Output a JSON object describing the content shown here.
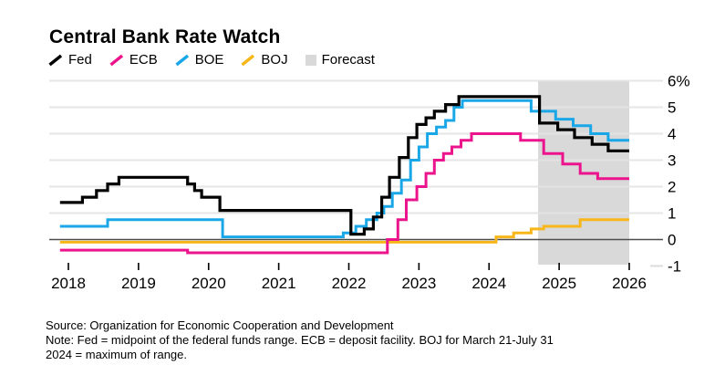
{
  "title": "Central Bank Rate Watch",
  "legend": [
    {
      "label": "Fed",
      "color": "#000000",
      "marker": "line"
    },
    {
      "label": "ECB",
      "color": "#ec148c",
      "marker": "line"
    },
    {
      "label": "BOE",
      "color": "#1aa7e8",
      "marker": "line"
    },
    {
      "label": "BOJ",
      "color": "#f7b71a",
      "marker": "line"
    },
    {
      "label": "Forecast",
      "color": "#d9d9d9",
      "marker": "square"
    }
  ],
  "footer": {
    "source": "Source: Organization for Economic Cooperation and Development",
    "note_lines": [
      "Note: Fed = midpoint of the federal funds range. ECB = deposit facility. BOJ for March 21-July 31",
      "2024 = maximum of range."
    ]
  },
  "chart_data": {
    "type": "line",
    "line_style": "step",
    "title": "Central Bank Rate Watch",
    "unit": "%",
    "xlim": [
      2017.88,
      2026
    ],
    "ylim": [
      -1,
      6
    ],
    "grid": "horizontal",
    "legend_position": "top-left",
    "x_ticks": [
      2018,
      2019,
      2020,
      2021,
      2022,
      2023,
      2024,
      2025,
      2026
    ],
    "y_ticks": [
      {
        "value": 6,
        "label": "6%"
      },
      {
        "value": 5,
        "label": "5"
      },
      {
        "value": 4,
        "label": "4"
      },
      {
        "value": 3,
        "label": "3"
      },
      {
        "value": 2,
        "label": "2"
      },
      {
        "value": 1,
        "label": "1"
      },
      {
        "value": 0,
        "label": "0"
      },
      {
        "value": -1,
        "label": "-1"
      }
    ],
    "forecast_region": {
      "start": 2024.7,
      "end": 2026,
      "color": "#d9d9d9"
    },
    "series": [
      {
        "name": "Fed",
        "color": "#000000",
        "width": 3.2,
        "points": [
          [
            2017.88,
            1.4
          ],
          [
            2018.2,
            1.6
          ],
          [
            2018.4,
            1.85
          ],
          [
            2018.56,
            2.1
          ],
          [
            2018.72,
            2.35
          ],
          [
            2019.7,
            2.1
          ],
          [
            2019.8,
            1.85
          ],
          [
            2019.9,
            1.6
          ],
          [
            2020.16,
            1.1
          ],
          [
            2022.03,
            0.2
          ],
          [
            2022.22,
            0.4
          ],
          [
            2022.35,
            0.85
          ],
          [
            2022.47,
            1.6
          ],
          [
            2022.58,
            2.35
          ],
          [
            2022.72,
            3.1
          ],
          [
            2022.85,
            3.85
          ],
          [
            2022.97,
            4.35
          ],
          [
            2023.1,
            4.6
          ],
          [
            2023.22,
            4.85
          ],
          [
            2023.38,
            5.1
          ],
          [
            2023.57,
            5.4
          ],
          [
            2024.72,
            4.4
          ],
          [
            2024.98,
            4.15
          ],
          [
            2025.22,
            3.85
          ],
          [
            2025.47,
            3.6
          ],
          [
            2025.7,
            3.35
          ]
        ]
      },
      {
        "name": "ECB",
        "color": "#ec148c",
        "width": 3,
        "points": [
          [
            2017.88,
            -0.4
          ],
          [
            2019.7,
            -0.5
          ],
          [
            2022.55,
            0.0
          ],
          [
            2022.7,
            0.75
          ],
          [
            2022.82,
            1.5
          ],
          [
            2022.97,
            2.0
          ],
          [
            2023.1,
            2.5
          ],
          [
            2023.22,
            3.0
          ],
          [
            2023.35,
            3.25
          ],
          [
            2023.47,
            3.5
          ],
          [
            2023.6,
            3.75
          ],
          [
            2023.75,
            4.0
          ],
          [
            2024.45,
            3.75
          ],
          [
            2024.78,
            3.25
          ],
          [
            2025.05,
            2.85
          ],
          [
            2025.3,
            2.5
          ],
          [
            2025.55,
            2.3
          ]
        ]
      },
      {
        "name": "BOE",
        "color": "#1aa7e8",
        "width": 3,
        "points": [
          [
            2017.88,
            0.5
          ],
          [
            2018.56,
            0.75
          ],
          [
            2020.2,
            0.1
          ],
          [
            2021.92,
            0.25
          ],
          [
            2022.1,
            0.5
          ],
          [
            2022.25,
            0.75
          ],
          [
            2022.4,
            1.0
          ],
          [
            2022.5,
            1.25
          ],
          [
            2022.62,
            1.75
          ],
          [
            2022.75,
            2.25
          ],
          [
            2022.88,
            3.0
          ],
          [
            2023.0,
            3.5
          ],
          [
            2023.12,
            4.0
          ],
          [
            2023.25,
            4.25
          ],
          [
            2023.38,
            4.5
          ],
          [
            2023.5,
            5.0
          ],
          [
            2023.62,
            5.25
          ],
          [
            2024.6,
            4.85
          ],
          [
            2024.95,
            4.55
          ],
          [
            2025.2,
            4.3
          ],
          [
            2025.45,
            4.0
          ],
          [
            2025.7,
            3.75
          ]
        ]
      },
      {
        "name": "BOJ",
        "color": "#f7b71a",
        "width": 3,
        "points": [
          [
            2017.88,
            -0.1
          ],
          [
            2024.1,
            0.1
          ],
          [
            2024.35,
            0.25
          ],
          [
            2024.6,
            0.4
          ],
          [
            2024.78,
            0.5
          ],
          [
            2025.3,
            0.75
          ]
        ]
      }
    ]
  }
}
